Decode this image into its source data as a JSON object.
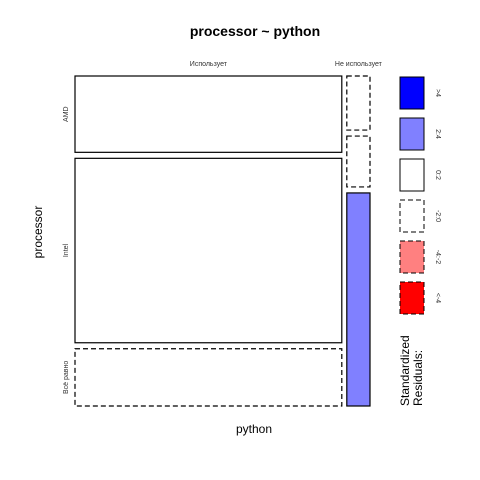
{
  "chart_data": {
    "type": "mosaic",
    "title": "processor ~ python",
    "xlabel": "python",
    "ylabel": "processor",
    "x_categories": [
      "Использует",
      "Не использует"
    ],
    "y_categories": [
      "AMD",
      "Intel",
      "Всё равно"
    ],
    "column_widths": [
      0.92,
      0.08
    ],
    "cells": [
      {
        "x": "Использует",
        "y": "AMD",
        "height": 0.24,
        "residual_class": "0:2"
      },
      {
        "x": "Использует",
        "y": "Intel",
        "height": 0.58,
        "residual_class": "0:2"
      },
      {
        "x": "Использует",
        "y": "Всё равно",
        "height": 0.18,
        "residual_class": "-2:0"
      },
      {
        "x": "Не использует",
        "y": "AMD",
        "height": 0.17,
        "residual_class": "-2:0"
      },
      {
        "x": "Не использует",
        "y": "Intel",
        "height": 0.16,
        "residual_class": "-2:0"
      },
      {
        "x": "Не использует",
        "y": "Всё равно",
        "height": 0.67,
        "residual_class": "2:4"
      }
    ],
    "legend": {
      "title_lines": [
        "Standardized",
        "Residuals:"
      ],
      "classes": [
        {
          "label": ">4",
          "fill": "#0000ff",
          "dashed": false
        },
        {
          "label": "2:4",
          "fill": "#8080ff",
          "dashed": false
        },
        {
          "label": "0:2",
          "fill": "#ffffff",
          "dashed": false
        },
        {
          "label": "-2:0",
          "fill": "#ffffff",
          "dashed": true
        },
        {
          "label": "-4:-2",
          "fill": "#ff8080",
          "dashed": true
        },
        {
          "label": "<-4",
          "fill": "#ff0000",
          "dashed": true
        }
      ]
    }
  }
}
